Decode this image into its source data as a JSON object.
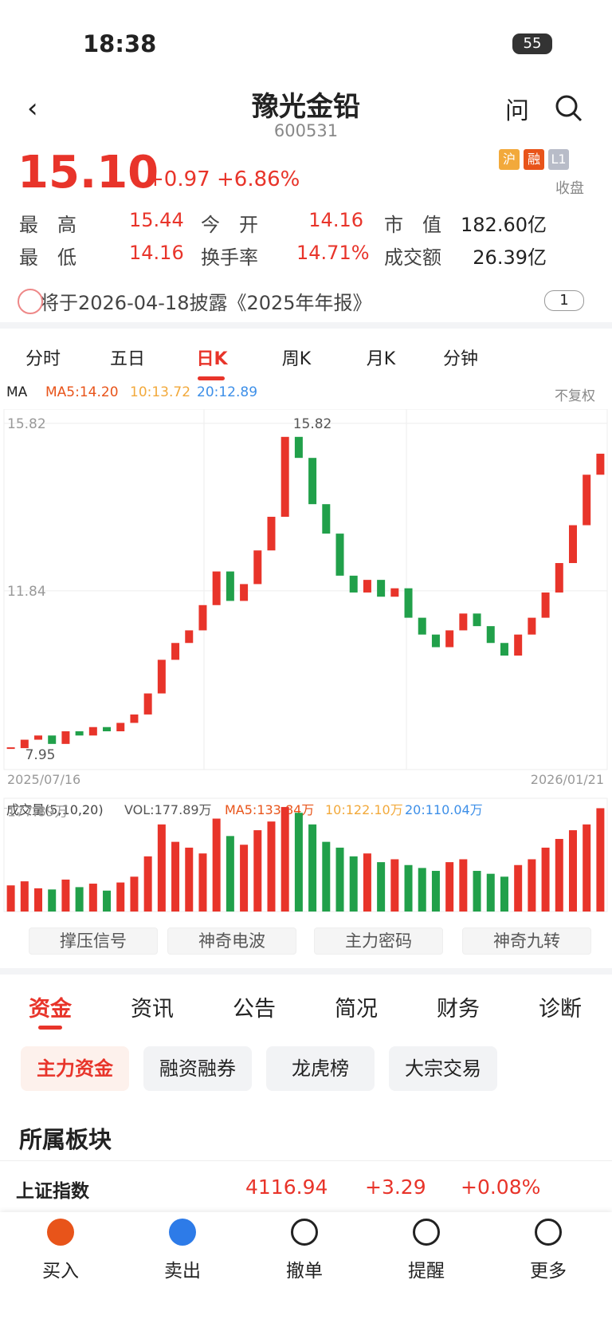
{
  "status": {
    "time": "18:38",
    "battery": "55"
  },
  "header": {
    "title": "豫光金铅",
    "code": "600531",
    "ask": "问"
  },
  "quote": {
    "price": "15.10",
    "change": "+0.97",
    "change_pct": "+6.86%",
    "badges": [
      "沪",
      "融",
      "L1"
    ],
    "state": "收盘"
  },
  "stats": [
    [
      "最　高",
      "15.44",
      "今　开",
      "14.16",
      "市　值",
      "182.60亿"
    ],
    [
      "最　低",
      "14.16",
      "换手率",
      "14.71%",
      "成交额",
      "26.39亿"
    ]
  ],
  "notice": {
    "text": "将于2026-04-18披露《2025年年报》",
    "count": "1"
  },
  "period_tabs": [
    "分时",
    "五日",
    "日K",
    "周K",
    "月K",
    "分钟"
  ],
  "ma_legend": {
    "label": "MA",
    "ma5": "MA5:14.20",
    "ma10": "10:13.72",
    "ma20": "20:12.89",
    "adjust": "不复权"
  },
  "chart_data": [
    {
      "type": "candlestick",
      "categories": [
        "2025/07/16",
        null,
        null,
        null,
        null,
        null,
        null,
        null,
        null,
        null,
        null,
        null,
        null,
        null,
        null,
        null,
        null,
        null,
        null,
        null,
        null,
        null,
        null,
        null,
        null,
        null,
        null,
        null,
        null,
        null,
        null,
        null,
        null,
        null,
        null,
        null,
        null,
        null,
        null,
        null,
        null,
        null,
        null,
        "2026/01/21"
      ],
      "closes": [
        8.1,
        8.3,
        8.4,
        8.2,
        8.5,
        8.4,
        8.6,
        8.5,
        8.7,
        8.9,
        9.4,
        10.2,
        10.6,
        10.9,
        11.5,
        12.3,
        11.6,
        12.0,
        12.8,
        13.6,
        15.5,
        15.0,
        13.9,
        13.2,
        12.2,
        11.8,
        12.1,
        11.7,
        11.9,
        11.2,
        10.8,
        10.5,
        10.9,
        11.3,
        11.0,
        10.6,
        10.3,
        10.8,
        11.2,
        11.8,
        12.5,
        13.4,
        14.6,
        15.1
      ],
      "ylim": [
        7.59,
        16.16
      ],
      "yticks": [
        15.82,
        11.84
      ],
      "high": 15.82,
      "low": 7.95
    },
    {
      "type": "bar",
      "title": "成交量(5,10,20)",
      "vol": "VOL:177.89万",
      "ma5": "MA5:133.84万",
      "ma10": "10:122.10万",
      "ma20": "20:110.04万",
      "values": [
        45,
        52,
        40,
        38,
        55,
        42,
        48,
        36,
        50,
        60,
        95,
        150,
        120,
        110,
        100,
        160,
        130,
        115,
        140,
        155,
        180,
        170,
        150,
        120,
        110,
        95,
        100,
        85,
        90,
        80,
        75,
        70,
        85,
        90,
        70,
        65,
        60,
        80,
        90,
        110,
        125,
        140,
        150,
        177.89
      ],
      "ylim": [
        0,
        195
      ],
      "yticks": [
        {
          "value": 177.89,
          "label": "177.89万"
        }
      ]
    }
  ],
  "tools": [
    "撑压信号",
    "神奇电波",
    "主力密码",
    "神奇九转"
  ],
  "section_tabs": [
    "资金",
    "资讯",
    "公告",
    "简况",
    "财务",
    "诊断"
  ],
  "sub_tabs": [
    "主力资金",
    "融资融券",
    "龙虎榜",
    "大宗交易"
  ],
  "sector": {
    "title": "所属板块",
    "row": [
      "上证指数",
      "4116.94",
      "+3.29",
      "+0.08%"
    ]
  },
  "nav": [
    "买入",
    "卖出",
    "撤单",
    "提醒",
    "更多"
  ]
}
